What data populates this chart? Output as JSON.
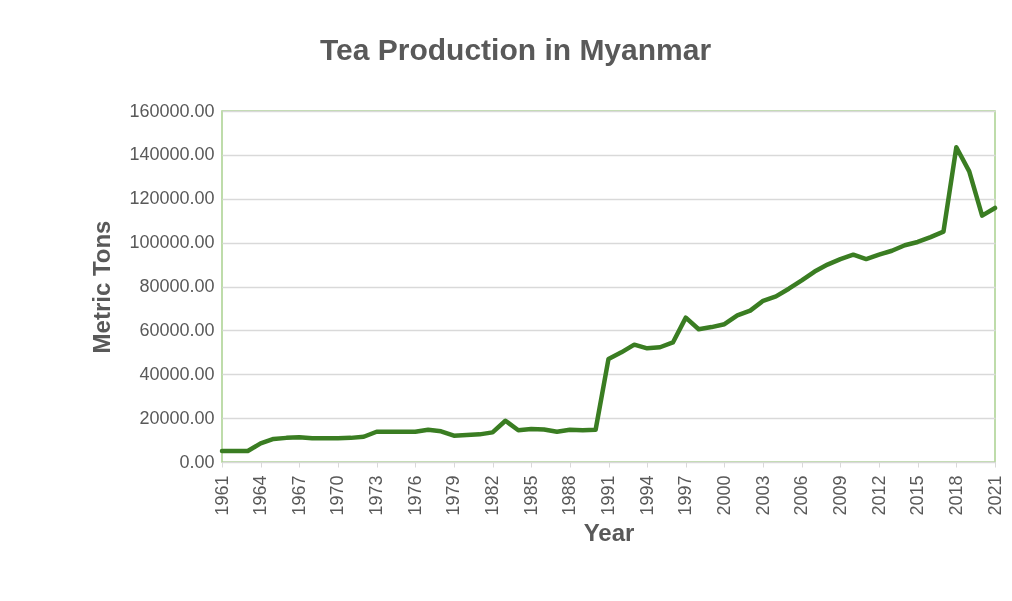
{
  "chart_data": {
    "type": "line",
    "title": "Tea Production in Myanmar",
    "xlabel": "Year",
    "ylabel": "Metric Tons",
    "x": [
      1961,
      1962,
      1963,
      1964,
      1965,
      1966,
      1967,
      1968,
      1969,
      1970,
      1971,
      1972,
      1973,
      1974,
      1975,
      1976,
      1977,
      1978,
      1979,
      1980,
      1981,
      1982,
      1983,
      1984,
      1985,
      1986,
      1987,
      1988,
      1989,
      1990,
      1991,
      1992,
      1993,
      1994,
      1995,
      1996,
      1997,
      1998,
      1999,
      2000,
      2001,
      2002,
      2003,
      2004,
      2005,
      2006,
      2007,
      2008,
      2009,
      2010,
      2011,
      2012,
      2013,
      2014,
      2015,
      2016,
      2017,
      2018,
      2019,
      2020,
      2021
    ],
    "series": [
      {
        "color": "#3a7d22",
        "values": [
          5000,
          5000,
          5000,
          8500,
          10500,
          11000,
          11300,
          10800,
          10800,
          10800,
          11000,
          11500,
          13800,
          13800,
          13800,
          13800,
          14700,
          14000,
          12000,
          12300,
          12600,
          13500,
          18800,
          14500,
          15000,
          14800,
          13800,
          14700,
          14500,
          14700,
          47000,
          50000,
          53500,
          51800,
          52300,
          54500,
          65800,
          60500,
          61500,
          62800,
          66800,
          69000,
          73500,
          75500,
          79000,
          82800,
          86800,
          90000,
          92500,
          94500,
          92500,
          94500,
          96300,
          98800,
          100300,
          102500,
          105000,
          143500,
          132500,
          112300,
          115800
        ]
      }
    ],
    "xlim": [
      1961,
      2021
    ],
    "xticks": [
      1961,
      1964,
      1967,
      1970,
      1973,
      1976,
      1979,
      1982,
      1985,
      1988,
      1991,
      1994,
      1997,
      2000,
      2003,
      2006,
      2009,
      2012,
      2015,
      2018,
      2021
    ],
    "ylim": [
      0,
      160000
    ],
    "yticks": [
      {
        "value": 0,
        "label": "0.00"
      },
      {
        "value": 20000,
        "label": "20000.00"
      },
      {
        "value": 40000,
        "label": "40000.00"
      },
      {
        "value": 60000,
        "label": "60000.00"
      },
      {
        "value": 80000,
        "label": "80000.00"
      },
      {
        "value": 100000,
        "label": "100000.00"
      },
      {
        "value": 120000,
        "label": "120000.00"
      },
      {
        "value": 140000,
        "label": "140000.00"
      },
      {
        "value": 160000,
        "label": "160000.00"
      }
    ],
    "grid": "y",
    "legend": false,
    "marker": "none",
    "line_style": "solid"
  }
}
